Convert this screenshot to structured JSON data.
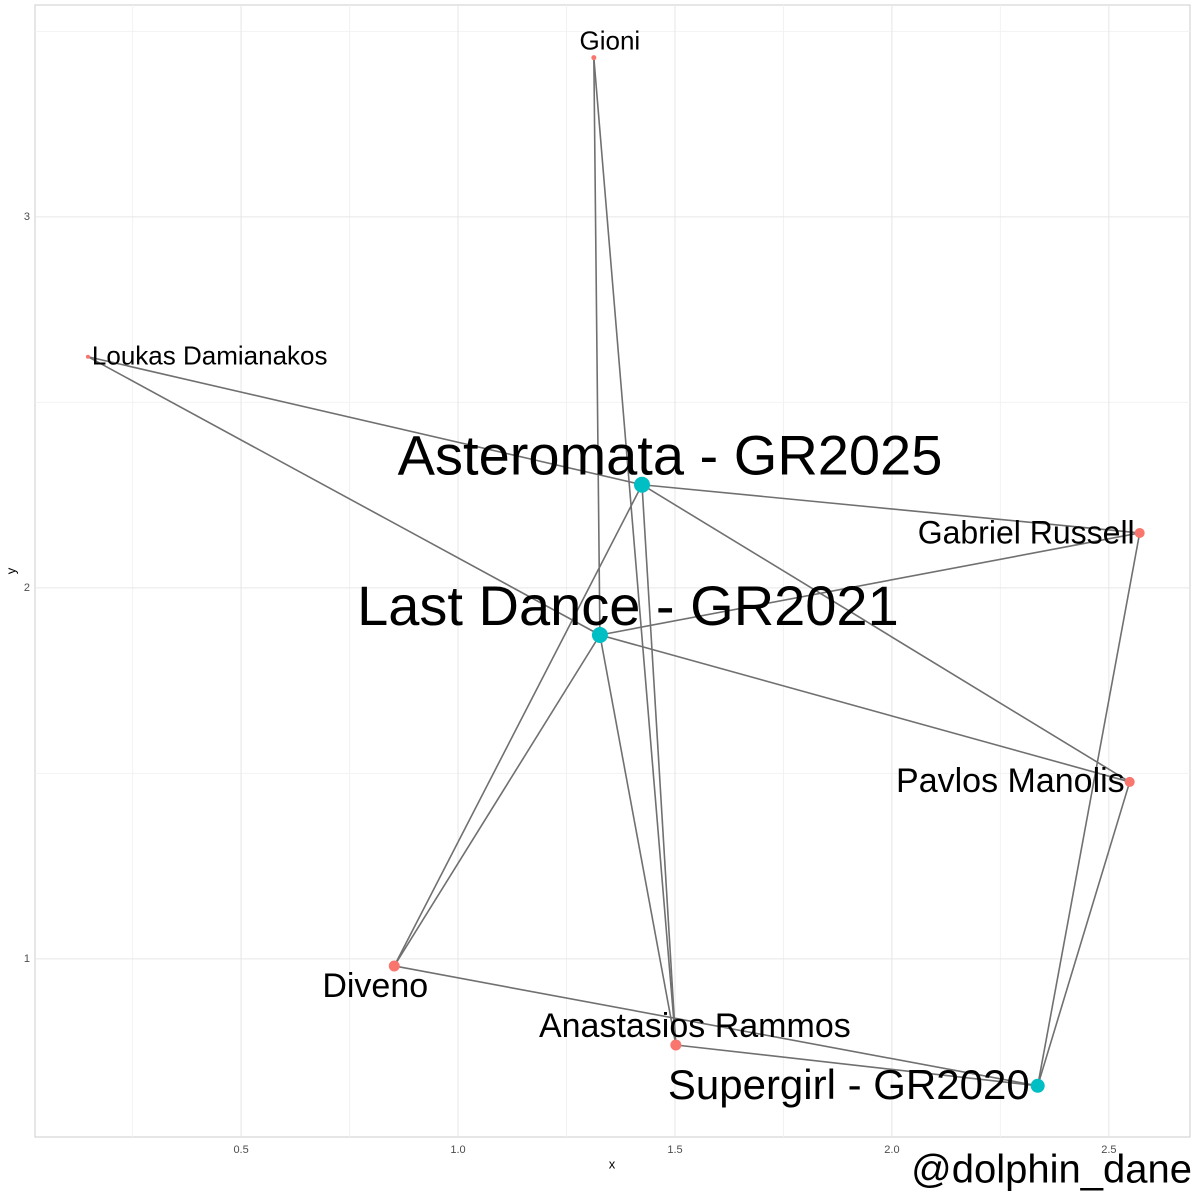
{
  "chart_data": {
    "type": "network",
    "xlabel": "x",
    "ylabel": "y",
    "caption": "@dolphin_dane",
    "xlim": [
      0.025,
      2.687
    ],
    "ylim": [
      0.52,
      3.571
    ],
    "xticks": [
      0.5,
      {
        "value": 1,
        "label": "1.0"
      },
      1.5,
      {
        "value": 2,
        "label": "2.0"
      },
      2.5
    ],
    "yticks": [
      1,
      2,
      3
    ],
    "grid": true,
    "nodes": {
      "labels": [
        "Gioni",
        "Loukas Damianakos",
        "Asteromata - GR2025",
        "Gabriel Russell",
        "Last Dance - GR2021",
        "Pavlos Manolis",
        "Diveno",
        "Anastasios Rammos",
        "Supergirl - GR2020"
      ],
      "x": [
        1.313,
        0.147,
        1.424,
        2.571,
        1.327,
        2.548,
        0.853,
        1.502,
        2.336
      ],
      "y": [
        3.429,
        2.623,
        2.278,
        2.148,
        1.873,
        1.477,
        0.981,
        0.768,
        0.658
      ],
      "colors": [
        "#F8766D",
        "#F8766D",
        "#00BFC4",
        "#F8766D",
        "#00BFC4",
        "#F8766D",
        "#F8766D",
        "#F8766D",
        "#00BFC4"
      ]
    },
    "edges": [
      [
        0,
        4
      ],
      [
        0,
        7
      ],
      [
        1,
        2
      ],
      [
        1,
        4
      ],
      [
        2,
        3
      ],
      [
        2,
        5
      ],
      [
        2,
        6
      ],
      [
        2,
        7
      ],
      [
        4,
        3
      ],
      [
        4,
        5
      ],
      [
        4,
        6
      ],
      [
        4,
        7
      ],
      [
        6,
        8
      ],
      [
        7,
        8
      ],
      [
        3,
        8
      ],
      [
        5,
        8
      ]
    ]
  }
}
